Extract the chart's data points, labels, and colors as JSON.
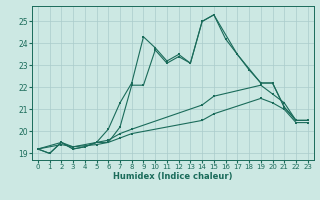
{
  "xlabel": "Humidex (Indice chaleur)",
  "bg_color": "#cce8e3",
  "grid_color": "#aacccc",
  "line_color": "#1a6b5a",
  "xlim": [
    -0.5,
    23.5
  ],
  "ylim": [
    18.7,
    25.7
  ],
  "xticks": [
    0,
    1,
    2,
    3,
    4,
    5,
    6,
    7,
    8,
    9,
    10,
    11,
    12,
    13,
    14,
    15,
    16,
    17,
    18,
    19,
    20,
    21,
    22,
    23
  ],
  "yticks": [
    19,
    20,
    21,
    22,
    23,
    24,
    25
  ],
  "lines": [
    {
      "x": [
        0,
        1,
        2,
        3,
        4,
        5,
        6,
        7,
        8,
        9,
        10,
        11,
        12,
        13,
        14,
        15,
        16,
        17,
        18,
        19,
        20,
        21,
        22,
        23
      ],
      "y": [
        19.2,
        19.0,
        19.5,
        19.2,
        19.3,
        19.5,
        20.1,
        21.3,
        22.2,
        24.3,
        23.8,
        23.2,
        23.5,
        23.1,
        25.0,
        25.3,
        24.2,
        23.5,
        22.8,
        22.2,
        22.2,
        21.1,
        20.5,
        20.5
      ]
    },
    {
      "x": [
        0,
        1,
        2,
        3,
        4,
        5,
        6,
        7,
        8,
        9,
        10,
        11,
        12,
        13,
        14,
        15,
        17,
        19,
        20,
        21,
        22,
        23
      ],
      "y": [
        19.2,
        19.0,
        19.5,
        19.2,
        19.3,
        19.5,
        19.5,
        20.2,
        22.1,
        22.1,
        23.7,
        23.1,
        23.4,
        23.1,
        25.0,
        25.3,
        23.5,
        22.2,
        22.2,
        21.1,
        20.5,
        20.5
      ]
    },
    {
      "x": [
        0,
        2,
        3,
        5,
        6,
        7,
        8,
        14,
        15,
        19,
        20,
        21,
        22,
        23
      ],
      "y": [
        19.2,
        19.5,
        19.3,
        19.5,
        19.6,
        19.9,
        20.1,
        21.2,
        21.6,
        22.1,
        21.7,
        21.3,
        20.5,
        20.5
      ]
    },
    {
      "x": [
        0,
        2,
        3,
        5,
        6,
        7,
        8,
        14,
        15,
        19,
        20,
        21,
        22,
        23
      ],
      "y": [
        19.2,
        19.4,
        19.3,
        19.4,
        19.5,
        19.7,
        19.9,
        20.5,
        20.8,
        21.5,
        21.3,
        21.0,
        20.4,
        20.4
      ]
    }
  ]
}
